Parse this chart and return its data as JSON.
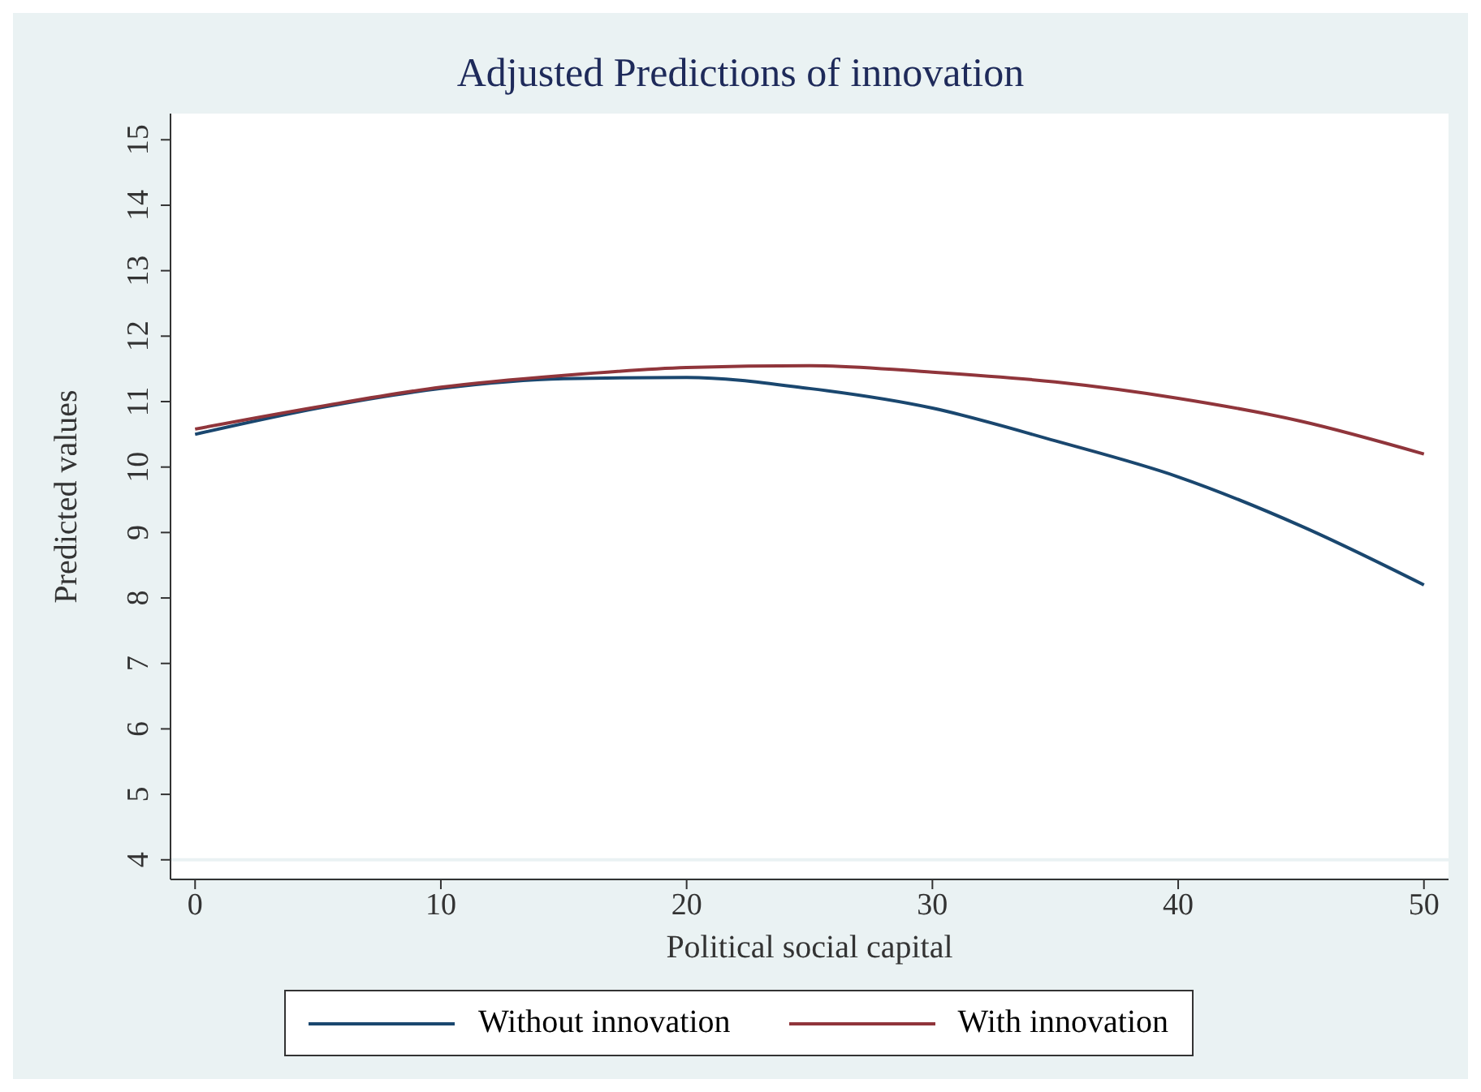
{
  "chart_data": {
    "type": "line",
    "title": "Adjusted Predictions of innovation",
    "xlabel": "Political social capital",
    "ylabel": "Predicted values",
    "x": [
      0,
      5,
      10,
      15,
      20,
      25,
      30,
      35,
      40,
      45,
      50
    ],
    "series": [
      {
        "name": "Without innovation",
        "color": "#1a476f",
        "values": [
          10.5,
          10.9,
          11.2,
          11.35,
          11.37,
          11.2,
          10.9,
          10.4,
          9.85,
          9.1,
          8.2
        ]
      },
      {
        "name": "With innovation",
        "color": "#90353b",
        "values": [
          10.58,
          10.92,
          11.22,
          11.4,
          11.52,
          11.55,
          11.45,
          11.3,
          11.05,
          10.7,
          10.2
        ]
      }
    ],
    "xlim": [
      -1,
      51
    ],
    "xticks": [
      0,
      10,
      20,
      30,
      40,
      50
    ],
    "ylim": [
      3.7,
      15.4
    ],
    "yticks": [
      4,
      5,
      6,
      7,
      8,
      9,
      10,
      11,
      12,
      13,
      14,
      15
    ],
    "grid": "y",
    "legend": "bottom",
    "marker": "none",
    "line_style": "solid"
  }
}
